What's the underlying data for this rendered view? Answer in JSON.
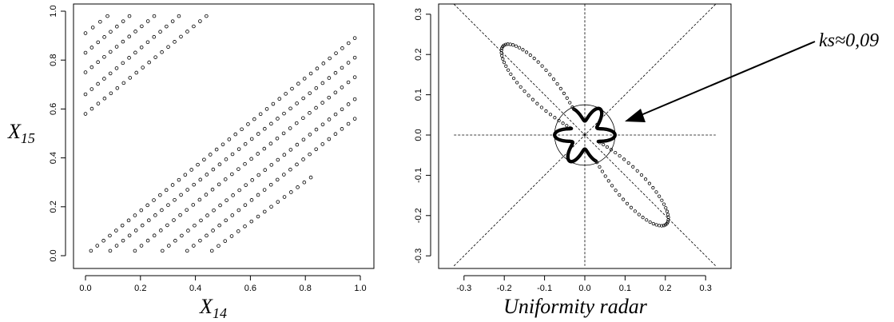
{
  "chart_data": [
    {
      "type": "scatter",
      "title": "",
      "xlabel": "X",
      "xlabel_sub": "14",
      "ylabel": "X",
      "ylabel_sub": "15",
      "xlim": [
        0,
        1
      ],
      "ylim": [
        0,
        1
      ],
      "xticks": [
        "0.0",
        "0.2",
        "0.4",
        "0.6",
        "0.8",
        "1.0"
      ],
      "yticks": [
        "0.0",
        "0.2",
        "0.4",
        "0.6",
        "0.8",
        "1.0"
      ],
      "grid": false,
      "marker": "open-circle",
      "pattern": {
        "description_of_structure": "parallel diagonal lines of points, slope ~0.9",
        "lower_lines_start_x": [
          0.02,
          0.09,
          0.18,
          0.28,
          0.37,
          0.46
        ],
        "lower_lines_end": [
          [
            0.98,
            0.89
          ],
          [
            0.98,
            0.81
          ],
          [
            0.98,
            0.73
          ],
          [
            0.98,
            0.64
          ],
          [
            0.98,
            0.56
          ],
          [
            0.82,
            0.32
          ]
        ],
        "upper_lines_start_y": [
          0.91,
          0.83,
          0.75,
          0.66,
          0.58
        ],
        "upper_lines_end": [
          [
            0.08,
            0.98
          ],
          [
            0.16,
            0.98
          ],
          [
            0.25,
            0.98
          ],
          [
            0.34,
            0.98
          ],
          [
            0.44,
            0.98
          ]
        ]
      }
    },
    {
      "type": "scatter",
      "title": "",
      "xlabel": "Uniformity radar",
      "ylabel": "",
      "xlim": [
        -0.33,
        0.33
      ],
      "ylim": [
        -0.33,
        0.33
      ],
      "xticks": [
        "-0.3",
        "-0.2",
        "-0.1",
        "0.0",
        "0.1",
        "0.2",
        "0.3"
      ],
      "yticks": [
        "-0.3",
        "-0.2",
        "-0.1",
        "0.0",
        "0.1",
        "0.2",
        "0.3"
      ],
      "reference_circle_radius": 0.075,
      "annotation": "ks≈0,09",
      "shape": "open-circle points tracing a star/propeller radar curve with two long lobes along the -45° diagonal",
      "lobe_tips": [
        [
          -0.2,
          0.22
        ],
        [
          0.2,
          -0.22
        ]
      ]
    }
  ]
}
